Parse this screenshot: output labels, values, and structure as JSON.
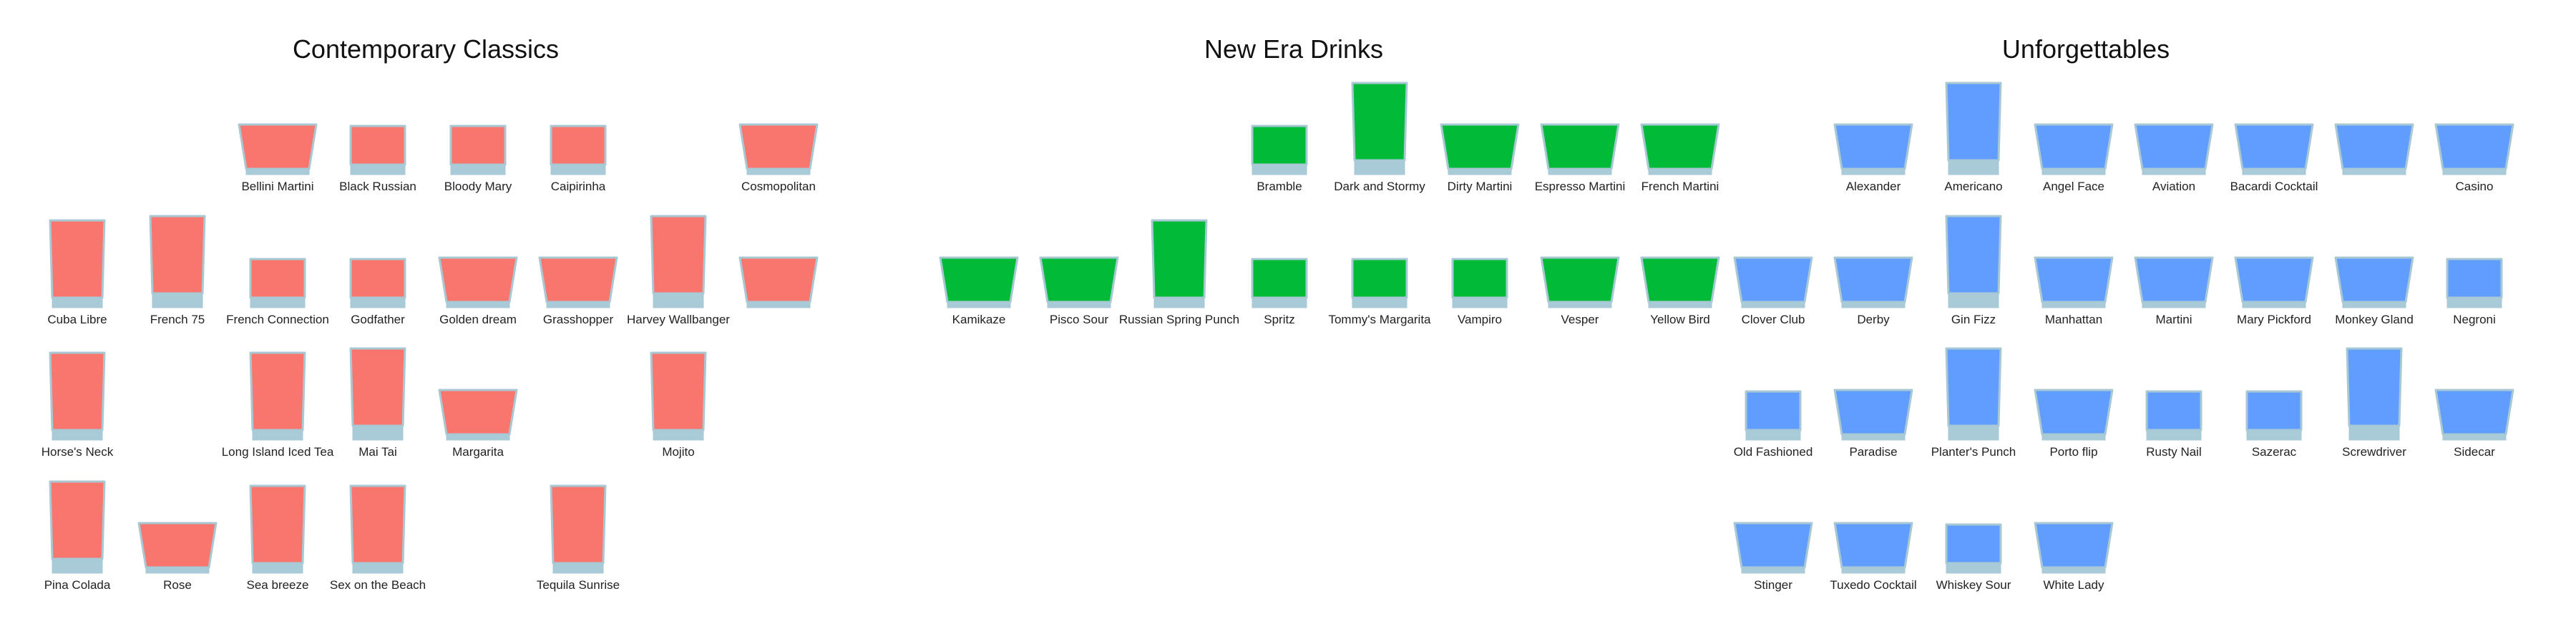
{
  "colors": {
    "base": "#a9cbd8",
    "outline": "#a8c8d4"
  },
  "chart_data": {
    "type": "pictogram",
    "panels": [
      {
        "title": "Contemporary Classics",
        "color": "#f8766d",
        "glasses": [
          {
            "label": "Bellini Martini",
            "row": 0,
            "col": 2,
            "shape": "martini"
          },
          {
            "label": "Black Russian",
            "row": 0,
            "col": 3,
            "shape": "short"
          },
          {
            "label": "Bloody Mary",
            "row": 0,
            "col": 4,
            "shape": "short"
          },
          {
            "label": "Caipirinha",
            "row": 0,
            "col": 5,
            "shape": "short"
          },
          {
            "label": "Cosmopolitan",
            "row": 0,
            "col": 7,
            "shape": "martini"
          },
          {
            "label": "Cuba Libre",
            "row": 1,
            "col": 0,
            "shape": "highball"
          },
          {
            "label": "French 75",
            "row": 1,
            "col": 1,
            "shape": "tall"
          },
          {
            "label": "French Connection",
            "row": 1,
            "col": 2,
            "shape": "short"
          },
          {
            "label": "Godfather",
            "row": 1,
            "col": 3,
            "shape": "short"
          },
          {
            "label": "Golden dream",
            "row": 1,
            "col": 4,
            "shape": "martini"
          },
          {
            "label": "Grasshopper",
            "row": 1,
            "col": 5,
            "shape": "martini"
          },
          {
            "label": "Harvey Wallbanger",
            "row": 1,
            "col": 6,
            "shape": "tall"
          },
          {
            "label": "",
            "row": 1,
            "col": 7,
            "shape": "martini"
          },
          {
            "label": "Horse's Neck",
            "row": 2,
            "col": 0,
            "shape": "highball"
          },
          {
            "label": "Long Island Iced Tea",
            "row": 2,
            "col": 2,
            "shape": "highball"
          },
          {
            "label": "Mai Tai",
            "row": 2,
            "col": 3,
            "shape": "tall"
          },
          {
            "label": "Margarita",
            "row": 2,
            "col": 4,
            "shape": "martini"
          },
          {
            "label": "Mojito",
            "row": 2,
            "col": 6,
            "shape": "highball"
          },
          {
            "label": "Pina Colada",
            "row": 3,
            "col": 0,
            "shape": "tall"
          },
          {
            "label": "Rose",
            "row": 3,
            "col": 1,
            "shape": "martini"
          },
          {
            "label": "Sea breeze",
            "row": 3,
            "col": 2,
            "shape": "highball"
          },
          {
            "label": "Sex on the Beach",
            "row": 3,
            "col": 3,
            "shape": "highball"
          },
          {
            "label": "Tequila Sunrise",
            "row": 3,
            "col": 5,
            "shape": "highball"
          }
        ]
      },
      {
        "title": "New Era Drinks",
        "color": "#00ba38",
        "glasses": [
          {
            "label": "Bramble",
            "row": 0,
            "col": 3,
            "shape": "short"
          },
          {
            "label": "Dark and Stormy",
            "row": 0,
            "col": 4,
            "shape": "tall"
          },
          {
            "label": "Dirty Martini",
            "row": 0,
            "col": 5,
            "shape": "martini"
          },
          {
            "label": "Espresso Martini",
            "row": 0,
            "col": 6,
            "shape": "martini"
          },
          {
            "label": "French Martini",
            "row": 0,
            "col": 7,
            "shape": "martini"
          },
          {
            "label": "Kamikaze",
            "row": 1,
            "col": 0,
            "shape": "martini"
          },
          {
            "label": "Pisco Sour",
            "row": 1,
            "col": 1,
            "shape": "martini"
          },
          {
            "label": "Russian Spring Punch",
            "row": 1,
            "col": 2,
            "shape": "highball"
          },
          {
            "label": "Spritz",
            "row": 1,
            "col": 3,
            "shape": "short"
          },
          {
            "label": "Tommy's Margarita",
            "row": 1,
            "col": 4,
            "shape": "short"
          },
          {
            "label": "Vampiro",
            "row": 1,
            "col": 5,
            "shape": "short"
          },
          {
            "label": "Vesper",
            "row": 1,
            "col": 6,
            "shape": "martini"
          },
          {
            "label": "Yellow Bird",
            "row": 1,
            "col": 7,
            "shape": "martini"
          }
        ]
      },
      {
        "title": "Unforgettables",
        "color": "#619cff",
        "glasses": [
          {
            "label": "Alexander",
            "row": 0,
            "col": 1,
            "shape": "martini"
          },
          {
            "label": "Americano",
            "row": 0,
            "col": 2,
            "shape": "tall"
          },
          {
            "label": "Angel Face",
            "row": 0,
            "col": 3,
            "shape": "martini"
          },
          {
            "label": "Aviation",
            "row": 0,
            "col": 4,
            "shape": "martini"
          },
          {
            "label": "Bacardi Cocktail",
            "row": 0,
            "col": 5,
            "shape": "martini"
          },
          {
            "label": "",
            "row": 0,
            "col": 6,
            "shape": "martini"
          },
          {
            "label": "Casino",
            "row": 0,
            "col": 7,
            "shape": "martini"
          },
          {
            "label": "Clover Club",
            "row": 1,
            "col": 0,
            "shape": "martini"
          },
          {
            "label": "Derby",
            "row": 1,
            "col": 1,
            "shape": "martini"
          },
          {
            "label": "Gin Fizz",
            "row": 1,
            "col": 2,
            "shape": "tall"
          },
          {
            "label": "Manhattan",
            "row": 1,
            "col": 3,
            "shape": "martini"
          },
          {
            "label": "Martini",
            "row": 1,
            "col": 4,
            "shape": "martini"
          },
          {
            "label": "Mary Pickford",
            "row": 1,
            "col": 5,
            "shape": "martini"
          },
          {
            "label": "Monkey Gland",
            "row": 1,
            "col": 6,
            "shape": "martini"
          },
          {
            "label": "Negroni",
            "row": 1,
            "col": 7,
            "shape": "short"
          },
          {
            "label": "Old Fashioned",
            "row": 2,
            "col": 0,
            "shape": "short"
          },
          {
            "label": "Paradise",
            "row": 2,
            "col": 1,
            "shape": "martini"
          },
          {
            "label": "Planter's Punch",
            "row": 2,
            "col": 2,
            "shape": "tall"
          },
          {
            "label": "Porto flip",
            "row": 2,
            "col": 3,
            "shape": "martini"
          },
          {
            "label": "Rusty Nail",
            "row": 2,
            "col": 4,
            "shape": "short"
          },
          {
            "label": "Sazerac",
            "row": 2,
            "col": 5,
            "shape": "short"
          },
          {
            "label": "Screwdriver",
            "row": 2,
            "col": 6,
            "shape": "tall"
          },
          {
            "label": "Sidecar",
            "row": 2,
            "col": 7,
            "shape": "martini"
          },
          {
            "label": "Stinger",
            "row": 3,
            "col": 0,
            "shape": "martini"
          },
          {
            "label": "Tuxedo Cocktail",
            "row": 3,
            "col": 1,
            "shape": "martini"
          },
          {
            "label": "Whiskey Sour",
            "row": 3,
            "col": 2,
            "shape": "short"
          },
          {
            "label": "White Lady",
            "row": 3,
            "col": 3,
            "shape": "martini"
          }
        ]
      }
    ]
  }
}
